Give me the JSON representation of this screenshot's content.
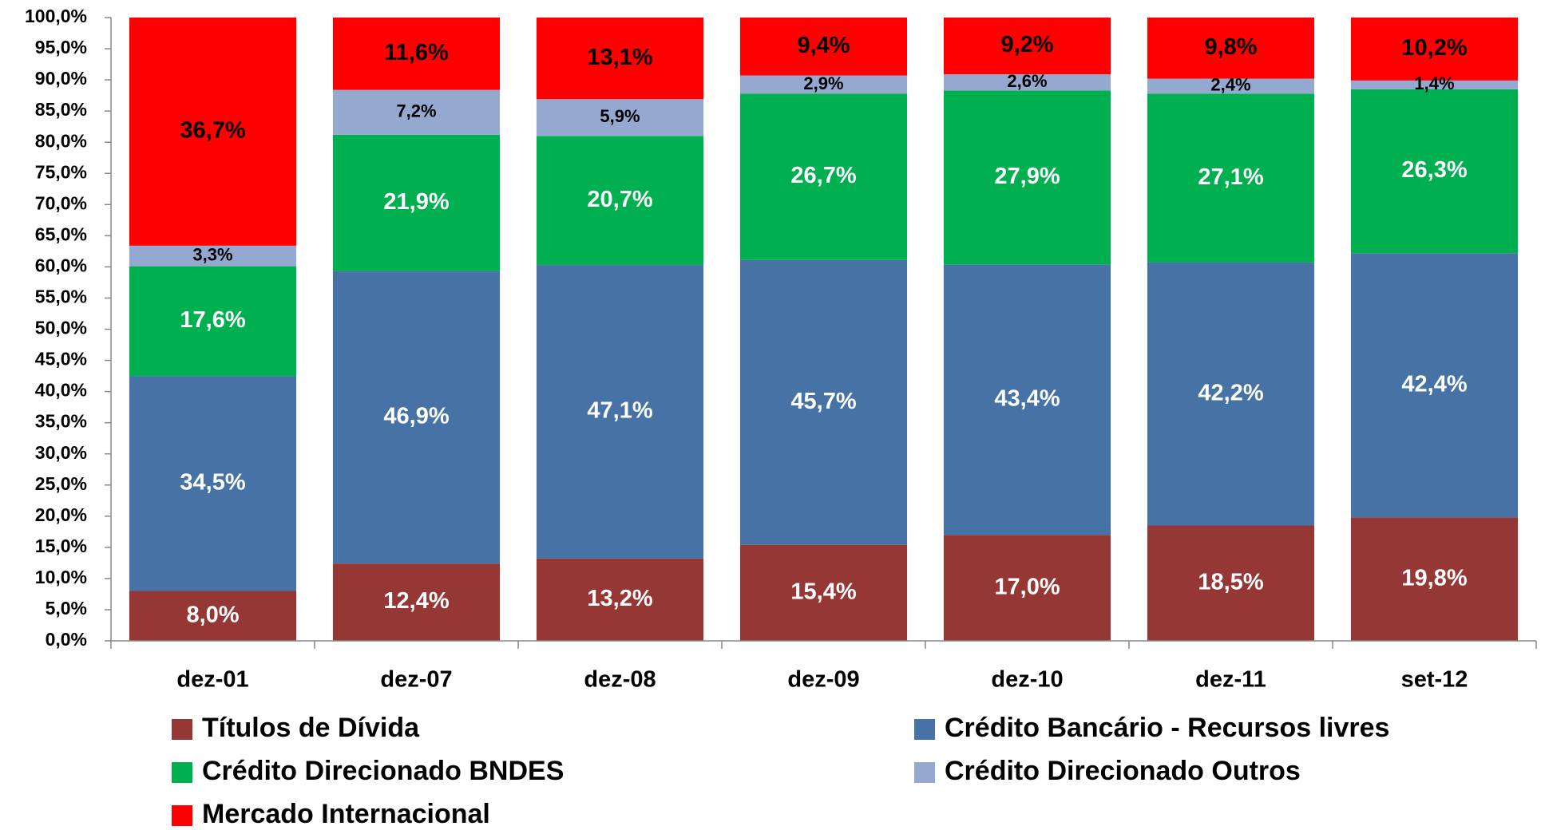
{
  "chart_data": {
    "type": "stacked_bar",
    "categories": [
      "dez-01",
      "dez-07",
      "dez-08",
      "dez-09",
      "dez-10",
      "dez-11",
      "set-12"
    ],
    "series": [
      {
        "name": "Títulos de Dívida",
        "color": "#953735",
        "label_color": "#ffffff",
        "values": [
          8.0,
          12.4,
          13.2,
          15.4,
          17.0,
          18.5,
          19.8
        ],
        "value_labels": [
          "8,0%",
          "12,4%",
          "13,2%",
          "15,4%",
          "17,0%",
          "18,5%",
          "19,8%"
        ]
      },
      {
        "name": "Crédito Bancário - Recursos livres",
        "color": "#4672a6",
        "label_color": "#ffffff",
        "values": [
          34.5,
          46.9,
          47.1,
          45.7,
          43.4,
          42.2,
          42.4
        ],
        "value_labels": [
          "34,5%",
          "46,9%",
          "47,1%",
          "45,7%",
          "43,4%",
          "42,2%",
          "42,4%"
        ]
      },
      {
        "name": "Crédito Direcionado  BNDES",
        "color": "#00b050",
        "label_color": "#ffffff",
        "values": [
          17.6,
          21.9,
          20.7,
          26.7,
          27.9,
          27.1,
          26.3
        ],
        "value_labels": [
          "17,6%",
          "21,9%",
          "20,7%",
          "26,7%",
          "27,9%",
          "27,1%",
          "26,3%"
        ]
      },
      {
        "name": "Crédito Direcionado Outros",
        "color": "#95a9d0",
        "label_color": "#000000",
        "values": [
          3.3,
          7.2,
          5.9,
          2.9,
          2.6,
          2.4,
          1.4
        ],
        "value_labels": [
          "3,3%",
          "7,2%",
          "5,9%",
          "2,9%",
          "2,6%",
          "2,4%",
          "1,4%"
        ]
      },
      {
        "name": "Mercado Internacional",
        "color": "#ff0000",
        "label_color": "#000000",
        "values": [
          36.7,
          11.6,
          13.1,
          9.4,
          9.2,
          9.8,
          10.2
        ],
        "value_labels": [
          "36,7%",
          "11,6%",
          "13,1%",
          "9,4%",
          "9,2%",
          "9,8%",
          "10,2%"
        ]
      }
    ],
    "ylim": [
      0,
      100
    ],
    "yticks": [
      {
        "value": 0,
        "label": "0,0%"
      },
      {
        "value": 5,
        "label": "5,0%"
      },
      {
        "value": 10,
        "label": "10,0%"
      },
      {
        "value": 15,
        "label": "15,0%"
      },
      {
        "value": 20,
        "label": "20,0%"
      },
      {
        "value": 25,
        "label": "25,0%"
      },
      {
        "value": 30,
        "label": "30,0%"
      },
      {
        "value": 35,
        "label": "35,0%"
      },
      {
        "value": 40,
        "label": "40,0%"
      },
      {
        "value": 45,
        "label": "45,0%"
      },
      {
        "value": 50,
        "label": "50,0%"
      },
      {
        "value": 55,
        "label": "55,0%"
      },
      {
        "value": 60,
        "label": "60,0%"
      },
      {
        "value": 65,
        "label": "65,0%"
      },
      {
        "value": 70,
        "label": "70,0%"
      },
      {
        "value": 75,
        "label": "75,0%"
      },
      {
        "value": 80,
        "label": "80,0%"
      },
      {
        "value": 85,
        "label": "85,0%"
      },
      {
        "value": 90,
        "label": "90,0%"
      },
      {
        "value": 95,
        "label": "95,0%"
      },
      {
        "value": 100,
        "label": "100,0%"
      }
    ],
    "grid": false
  }
}
